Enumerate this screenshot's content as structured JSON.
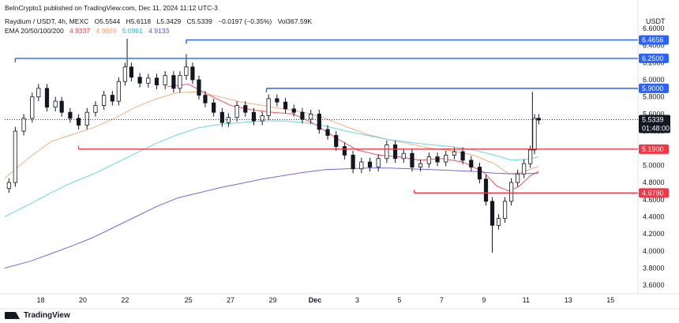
{
  "header": {
    "publish_line": "BeInCrypto1 published on TradingView.com, Dec 11, 2024 11:12 UTC-3",
    "symbol": "Raydium / USDT, 4h, MEXC",
    "ohlc": {
      "o": "O5.5544",
      "h": "H5.6118",
      "l": "L5.3429",
      "c": "C5.5339",
      "change": "−0.0197 (−0.35%)",
      "vol": "Vol367.59K"
    },
    "ema_label": "EMA 20/50/100/200",
    "ema_values": [
      "4.9337",
      "4.9869",
      "5.0961",
      "4.9133"
    ]
  },
  "colors": {
    "up": "#131722",
    "down": "#131722",
    "resistance": "#2962ff",
    "support": "#f23645",
    "ema20": "#f23645",
    "ema50": "#f5a168",
    "ema100": "#4dd0e1",
    "ema200": "#5b4fe0"
  },
  "chart_data": {
    "type": "candlestick",
    "currency": "USDT",
    "ylim": [
      3.5,
      6.6
    ],
    "y_ticks": [
      "6.6000",
      "6.4000",
      "6.2000",
      "6.0000",
      "5.8000",
      "5.6000",
      "5.4000",
      "5.2000",
      "5.0000",
      "4.8000",
      "4.6000",
      "4.4000",
      "4.2000",
      "4.0000",
      "3.8000",
      "3.6000"
    ],
    "x_ticks": [
      {
        "label": "18",
        "day": 18
      },
      {
        "label": "20",
        "day": 20
      },
      {
        "label": "22",
        "day": 22
      },
      {
        "label": "25",
        "day": 25
      },
      {
        "label": "27",
        "day": 27
      },
      {
        "label": "29",
        "day": 29
      },
      {
        "label": "Dec",
        "day": 31
      },
      {
        "label": "3",
        "day": 33
      },
      {
        "label": "5",
        "day": 35
      },
      {
        "label": "7",
        "day": 37
      },
      {
        "label": "9",
        "day": 39
      },
      {
        "label": "11",
        "day": 41
      },
      {
        "label": "13",
        "day": 43
      },
      {
        "label": "15",
        "day": 45
      }
    ],
    "x_range": [
      16.3,
      46.3
    ],
    "levels": [
      {
        "value": 6.4656,
        "label": "6.4656",
        "kind": "resistance",
        "from_day": 24.9
      },
      {
        "value": 6.25,
        "label": "6.2500",
        "kind": "resistance",
        "from_day": 16.8
      },
      {
        "value": 5.9,
        "label": "5.9000",
        "kind": "resistance",
        "from_day": 28.7
      },
      {
        "value": 5.19,
        "label": "5.1900",
        "kind": "support",
        "from_day": 19.8
      },
      {
        "value": 4.678,
        "label": "4.6780",
        "kind": "support",
        "from_day": 35.7
      }
    ],
    "last_price": {
      "value": 5.5339,
      "label": "5.5339",
      "countdown": "01:48:00"
    },
    "price_path": [
      [
        16.3,
        4.73
      ],
      [
        16.5,
        4.8
      ],
      [
        16.8,
        5.4
      ],
      [
        17.2,
        5.55
      ],
      [
        17.6,
        5.8
      ],
      [
        17.9,
        5.9
      ],
      [
        18.3,
        5.68
      ],
      [
        18.7,
        5.75
      ],
      [
        19.0,
        5.62
      ],
      [
        19.4,
        5.55
      ],
      [
        19.8,
        5.47
      ],
      [
        20.2,
        5.62
      ],
      [
        20.6,
        5.7
      ],
      [
        21.0,
        5.82
      ],
      [
        21.4,
        5.75
      ],
      [
        21.7,
        5.98
      ],
      [
        22.0,
        6.15
      ],
      [
        22.3,
        6.03
      ],
      [
        22.7,
        5.96
      ],
      [
        23.1,
        6.02
      ],
      [
        23.5,
        5.94
      ],
      [
        23.9,
        6.05
      ],
      [
        24.3,
        5.9
      ],
      [
        24.6,
        6.05
      ],
      [
        24.9,
        6.15
      ],
      [
        25.2,
        6.0
      ],
      [
        25.5,
        5.82
      ],
      [
        25.8,
        5.73
      ],
      [
        26.2,
        5.62
      ],
      [
        26.6,
        5.5
      ],
      [
        26.9,
        5.56
      ],
      [
        27.3,
        5.7
      ],
      [
        27.7,
        5.62
      ],
      [
        28.1,
        5.52
      ],
      [
        28.5,
        5.58
      ],
      [
        28.8,
        5.78
      ],
      [
        29.2,
        5.74
      ],
      [
        29.6,
        5.66
      ],
      [
        30.0,
        5.62
      ],
      [
        30.4,
        5.54
      ],
      [
        30.8,
        5.6
      ],
      [
        31.2,
        5.42
      ],
      [
        31.6,
        5.35
      ],
      [
        32.0,
        5.22
      ],
      [
        32.4,
        5.12
      ],
      [
        32.8,
        4.96
      ],
      [
        33.2,
        5.04
      ],
      [
        33.6,
        4.98
      ],
      [
        34.0,
        5.08
      ],
      [
        34.4,
        5.24
      ],
      [
        34.8,
        5.08
      ],
      [
        35.2,
        5.14
      ],
      [
        35.6,
        4.98
      ],
      [
        36.0,
        5.02
      ],
      [
        36.4,
        5.1
      ],
      [
        36.8,
        5.04
      ],
      [
        37.2,
        5.12
      ],
      [
        37.6,
        5.16
      ],
      [
        38.0,
        5.06
      ],
      [
        38.4,
        4.98
      ],
      [
        38.8,
        4.84
      ],
      [
        39.1,
        4.58
      ],
      [
        39.4,
        4.3
      ],
      [
        39.7,
        4.38
      ],
      [
        40.0,
        4.58
      ],
      [
        40.3,
        4.8
      ],
      [
        40.6,
        4.9
      ],
      [
        40.9,
        5.02
      ],
      [
        41.2,
        5.18
      ],
      [
        41.4,
        5.55
      ],
      [
        41.6,
        5.53
      ]
    ],
    "spikes": [
      [
        39.4,
        3.98
      ],
      [
        41.3,
        5.86
      ],
      [
        22.1,
        6.48
      ],
      [
        24.9,
        6.3
      ]
    ],
    "ema_paths": {
      "ema20": [
        [
          24.0,
          5.92
        ],
        [
          25.0,
          5.95
        ],
        [
          26.0,
          5.82
        ],
        [
          27.0,
          5.7
        ],
        [
          28.0,
          5.65
        ],
        [
          29.0,
          5.62
        ],
        [
          30.0,
          5.6
        ],
        [
          31.0,
          5.48
        ],
        [
          32.0,
          5.32
        ],
        [
          33.0,
          5.18
        ],
        [
          34.0,
          5.12
        ],
        [
          35.0,
          5.1
        ],
        [
          36.0,
          5.06
        ],
        [
          37.0,
          5.08
        ],
        [
          38.0,
          5.04
        ],
        [
          39.0,
          4.92
        ],
        [
          39.6,
          4.76
        ],
        [
          40.2,
          4.7
        ],
        [
          40.7,
          4.76
        ],
        [
          41.2,
          4.88
        ],
        [
          41.6,
          4.93
        ]
      ],
      "ema50": [
        [
          16.3,
          4.85
        ],
        [
          17.5,
          5.1
        ],
        [
          18.5,
          5.28
        ],
        [
          19.5,
          5.36
        ],
        [
          20.5,
          5.44
        ],
        [
          21.5,
          5.55
        ],
        [
          22.5,
          5.68
        ],
        [
          23.5,
          5.78
        ],
        [
          24.5,
          5.85
        ],
        [
          25.5,
          5.86
        ],
        [
          26.5,
          5.8
        ],
        [
          27.5,
          5.74
        ],
        [
          28.5,
          5.7
        ],
        [
          29.5,
          5.66
        ],
        [
          30.5,
          5.62
        ],
        [
          31.5,
          5.55
        ],
        [
          32.5,
          5.45
        ],
        [
          33.5,
          5.36
        ],
        [
          34.5,
          5.3
        ],
        [
          35.5,
          5.25
        ],
        [
          36.5,
          5.2
        ],
        [
          37.5,
          5.17
        ],
        [
          38.5,
          5.12
        ],
        [
          39.5,
          5.02
        ],
        [
          40.2,
          4.9
        ],
        [
          40.8,
          4.92
        ],
        [
          41.6,
          4.99
        ]
      ],
      "ema100": [
        [
          16.3,
          4.4
        ],
        [
          17.5,
          4.55
        ],
        [
          18.5,
          4.68
        ],
        [
          19.5,
          4.8
        ],
        [
          20.5,
          4.9
        ],
        [
          21.5,
          5.02
        ],
        [
          22.5,
          5.14
        ],
        [
          23.5,
          5.26
        ],
        [
          24.5,
          5.36
        ],
        [
          25.5,
          5.44
        ],
        [
          26.5,
          5.48
        ],
        [
          27.5,
          5.5
        ],
        [
          28.5,
          5.52
        ],
        [
          29.5,
          5.52
        ],
        [
          30.5,
          5.5
        ],
        [
          31.5,
          5.46
        ],
        [
          32.5,
          5.4
        ],
        [
          33.5,
          5.35
        ],
        [
          34.5,
          5.3
        ],
        [
          35.5,
          5.27
        ],
        [
          36.5,
          5.24
        ],
        [
          37.5,
          5.22
        ],
        [
          38.5,
          5.18
        ],
        [
          39.5,
          5.12
        ],
        [
          40.3,
          5.06
        ],
        [
          41.0,
          5.07
        ],
        [
          41.6,
          5.1
        ]
      ],
      "ema200": [
        [
          16.3,
          3.8
        ],
        [
          17.5,
          3.88
        ],
        [
          18.5,
          3.97
        ],
        [
          19.5,
          4.06
        ],
        [
          20.5,
          4.16
        ],
        [
          21.5,
          4.28
        ],
        [
          22.5,
          4.4
        ],
        [
          23.5,
          4.52
        ],
        [
          24.5,
          4.62
        ],
        [
          25.5,
          4.68
        ],
        [
          26.5,
          4.74
        ],
        [
          27.5,
          4.79
        ],
        [
          28.5,
          4.84
        ],
        [
          29.5,
          4.88
        ],
        [
          30.5,
          4.92
        ],
        [
          31.5,
          4.95
        ],
        [
          32.5,
          4.96
        ],
        [
          33.5,
          4.97
        ],
        [
          34.5,
          4.97
        ],
        [
          35.5,
          4.96
        ],
        [
          36.5,
          4.95
        ],
        [
          37.5,
          4.94
        ],
        [
          38.5,
          4.93
        ],
        [
          39.5,
          4.91
        ],
        [
          40.5,
          4.9
        ],
        [
          41.6,
          4.91
        ]
      ]
    }
  },
  "footer": {
    "brand": "TradingView"
  }
}
